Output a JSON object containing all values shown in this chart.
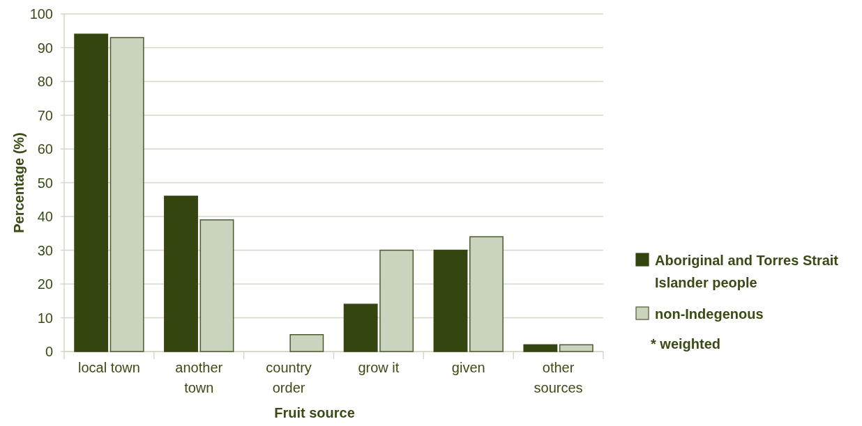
{
  "chart_data": {
    "type": "bar",
    "xlabel": "Fruit source",
    "ylabel": "Percentage (%)",
    "categories": [
      "local town",
      "another town",
      "country order",
      "grow it",
      "given",
      "other sources"
    ],
    "series": [
      {
        "name": "Aboriginal and Torres Strait Islander people",
        "color": "#344510",
        "values": [
          94,
          46,
          0,
          14,
          30,
          2
        ]
      },
      {
        "name": "non-Indegenous",
        "color": "#cad3bd",
        "values": [
          93,
          39,
          5,
          30,
          34,
          2
        ]
      }
    ],
    "ylim": [
      0,
      100
    ],
    "yticks": [
      0,
      10,
      20,
      30,
      40,
      50,
      60,
      70,
      80,
      90,
      100
    ],
    "grid": "y",
    "legend": "right",
    "annotations": [
      "* weighted"
    ]
  }
}
